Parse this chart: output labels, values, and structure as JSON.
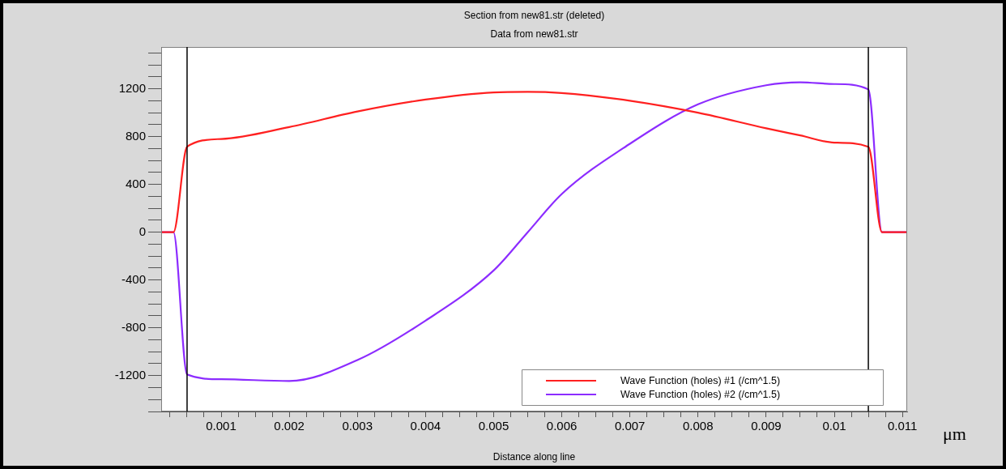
{
  "chart_data": {
    "type": "line",
    "title": "Section from new81.str (deleted)",
    "subtitle": "Data from new81.str",
    "xlabel": "Distance along line",
    "annotations": [
      "μm"
    ],
    "x": [
      0.00012,
      0.0003,
      0.0005,
      0.001,
      0.002,
      0.003,
      0.004,
      0.005,
      0.0055,
      0.006,
      0.007,
      0.008,
      0.009,
      0.0095,
      0.01,
      0.0105,
      0.0107,
      0.01107
    ],
    "series": [
      {
        "name": "Wave Function (holes) #1 (/cm^1.5)",
        "color": "#ff2020",
        "values": [
          0,
          0,
          715,
          780,
          880,
          1010,
          1110,
          1170,
          1175,
          1165,
          1100,
          1000,
          870,
          810,
          750,
          715,
          0,
          0
        ]
      },
      {
        "name": "Wave Function (holes) #2 (/cm^1.5)",
        "color": "#8c2cff",
        "values": [
          0,
          0,
          -1190,
          -1230,
          -1245,
          -1070,
          -740,
          -320,
          0,
          320,
          740,
          1070,
          1230,
          1255,
          1240,
          1195,
          0,
          0
        ]
      }
    ],
    "xlim": [
      0.00012,
      0.01107
    ],
    "xticks": [
      {
        "value": 0.00025,
        "label": null
      },
      {
        "value": 0.0005,
        "label": null
      },
      {
        "value": 0.00075,
        "label": null
      },
      0.001,
      {
        "value": 0.00125,
        "label": null
      },
      {
        "value": 0.0015,
        "label": null
      },
      {
        "value": 0.00175,
        "label": null
      },
      0.002,
      {
        "value": 0.00225,
        "label": null
      },
      {
        "value": 0.0025,
        "label": null
      },
      {
        "value": 0.00275,
        "label": null
      },
      0.003,
      {
        "value": 0.00325,
        "label": null
      },
      {
        "value": 0.0035,
        "label": null
      },
      {
        "value": 0.00375,
        "label": null
      },
      0.004,
      {
        "value": 0.00425,
        "label": null
      },
      {
        "value": 0.0045,
        "label": null
      },
      {
        "value": 0.00475,
        "label": null
      },
      0.005,
      {
        "value": 0.00525,
        "label": null
      },
      {
        "value": 0.0055,
        "label": null
      },
      {
        "value": 0.00575,
        "label": null
      },
      0.006,
      {
        "value": 0.00625,
        "label": null
      },
      {
        "value": 0.0065,
        "label": null
      },
      {
        "value": 0.00675,
        "label": null
      },
      0.007,
      {
        "value": 0.00725,
        "label": null
      },
      {
        "value": 0.0075,
        "label": null
      },
      {
        "value": 0.00775,
        "label": null
      },
      0.008,
      {
        "value": 0.00825,
        "label": null
      },
      {
        "value": 0.0085,
        "label": null
      },
      {
        "value": 0.00875,
        "label": null
      },
      0.009,
      {
        "value": 0.00925,
        "label": null
      },
      {
        "value": 0.0095,
        "label": null
      },
      {
        "value": 0.00975,
        "label": null
      },
      0.01,
      {
        "value": 0.01025,
        "label": null
      },
      {
        "value": 0.0105,
        "label": null
      },
      {
        "value": 0.01075,
        "label": null
      },
      0.011
    ],
    "ylim": [
      -1500,
      1550
    ],
    "yticks": [
      {
        "value": -1500,
        "label": null
      },
      {
        "value": -1400,
        "label": null
      },
      {
        "value": -1300,
        "label": null
      },
      -1200,
      {
        "value": -1100,
        "label": null
      },
      {
        "value": -1000,
        "label": null
      },
      {
        "value": -900,
        "label": null
      },
      -800,
      {
        "value": -700,
        "label": null
      },
      {
        "value": -600,
        "label": null
      },
      {
        "value": -500,
        "label": null
      },
      -400,
      {
        "value": -300,
        "label": null
      },
      {
        "value": -200,
        "label": null
      },
      {
        "value": -100,
        "label": null
      },
      0,
      {
        "value": 100,
        "label": null
      },
      {
        "value": 200,
        "label": null
      },
      {
        "value": 300,
        "label": null
      },
      400,
      {
        "value": 500,
        "label": null
      },
      {
        "value": 600,
        "label": null
      },
      {
        "value": 700,
        "label": null
      },
      800,
      {
        "value": 900,
        "label": null
      },
      {
        "value": 1000,
        "label": null
      },
      {
        "value": 1100,
        "label": null
      },
      1200,
      {
        "value": 1300,
        "label": null
      },
      {
        "value": 1400,
        "label": null
      },
      {
        "value": 1500,
        "label": null
      }
    ],
    "ref_lines": [
      {
        "axis": "x",
        "value": 0.0005,
        "color": "#000000"
      },
      {
        "axis": "x",
        "value": 0.0105,
        "color": "#000000"
      }
    ],
    "grid": false,
    "legend": "bottom right",
    "marker": "none",
    "line_style": "solid"
  }
}
